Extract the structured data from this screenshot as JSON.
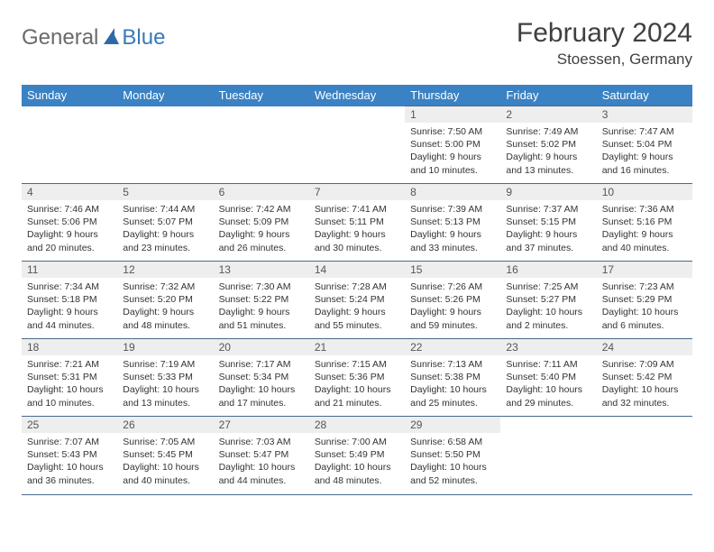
{
  "logo": {
    "general": "General",
    "blue": "Blue"
  },
  "title": "February 2024",
  "location": "Stoessen, Germany",
  "dayHeaders": [
    "Sunday",
    "Monday",
    "Tuesday",
    "Wednesday",
    "Thursday",
    "Friday",
    "Saturday"
  ],
  "colors": {
    "headerBg": "#3a82c4",
    "headerText": "#ffffff",
    "dayNumBg": "#eeeeee",
    "border": "#4a6a8a",
    "logoBlue": "#3a7ab8",
    "logoGray": "#6a6a6a"
  },
  "weeks": [
    [
      null,
      null,
      null,
      null,
      {
        "n": "1",
        "sr": "Sunrise: 7:50 AM",
        "ss": "Sunset: 5:00 PM",
        "d1": "Daylight: 9 hours",
        "d2": "and 10 minutes."
      },
      {
        "n": "2",
        "sr": "Sunrise: 7:49 AM",
        "ss": "Sunset: 5:02 PM",
        "d1": "Daylight: 9 hours",
        "d2": "and 13 minutes."
      },
      {
        "n": "3",
        "sr": "Sunrise: 7:47 AM",
        "ss": "Sunset: 5:04 PM",
        "d1": "Daylight: 9 hours",
        "d2": "and 16 minutes."
      }
    ],
    [
      {
        "n": "4",
        "sr": "Sunrise: 7:46 AM",
        "ss": "Sunset: 5:06 PM",
        "d1": "Daylight: 9 hours",
        "d2": "and 20 minutes."
      },
      {
        "n": "5",
        "sr": "Sunrise: 7:44 AM",
        "ss": "Sunset: 5:07 PM",
        "d1": "Daylight: 9 hours",
        "d2": "and 23 minutes."
      },
      {
        "n": "6",
        "sr": "Sunrise: 7:42 AM",
        "ss": "Sunset: 5:09 PM",
        "d1": "Daylight: 9 hours",
        "d2": "and 26 minutes."
      },
      {
        "n": "7",
        "sr": "Sunrise: 7:41 AM",
        "ss": "Sunset: 5:11 PM",
        "d1": "Daylight: 9 hours",
        "d2": "and 30 minutes."
      },
      {
        "n": "8",
        "sr": "Sunrise: 7:39 AM",
        "ss": "Sunset: 5:13 PM",
        "d1": "Daylight: 9 hours",
        "d2": "and 33 minutes."
      },
      {
        "n": "9",
        "sr": "Sunrise: 7:37 AM",
        "ss": "Sunset: 5:15 PM",
        "d1": "Daylight: 9 hours",
        "d2": "and 37 minutes."
      },
      {
        "n": "10",
        "sr": "Sunrise: 7:36 AM",
        "ss": "Sunset: 5:16 PM",
        "d1": "Daylight: 9 hours",
        "d2": "and 40 minutes."
      }
    ],
    [
      {
        "n": "11",
        "sr": "Sunrise: 7:34 AM",
        "ss": "Sunset: 5:18 PM",
        "d1": "Daylight: 9 hours",
        "d2": "and 44 minutes."
      },
      {
        "n": "12",
        "sr": "Sunrise: 7:32 AM",
        "ss": "Sunset: 5:20 PM",
        "d1": "Daylight: 9 hours",
        "d2": "and 48 minutes."
      },
      {
        "n": "13",
        "sr": "Sunrise: 7:30 AM",
        "ss": "Sunset: 5:22 PM",
        "d1": "Daylight: 9 hours",
        "d2": "and 51 minutes."
      },
      {
        "n": "14",
        "sr": "Sunrise: 7:28 AM",
        "ss": "Sunset: 5:24 PM",
        "d1": "Daylight: 9 hours",
        "d2": "and 55 minutes."
      },
      {
        "n": "15",
        "sr": "Sunrise: 7:26 AM",
        "ss": "Sunset: 5:26 PM",
        "d1": "Daylight: 9 hours",
        "d2": "and 59 minutes."
      },
      {
        "n": "16",
        "sr": "Sunrise: 7:25 AM",
        "ss": "Sunset: 5:27 PM",
        "d1": "Daylight: 10 hours",
        "d2": "and 2 minutes."
      },
      {
        "n": "17",
        "sr": "Sunrise: 7:23 AM",
        "ss": "Sunset: 5:29 PM",
        "d1": "Daylight: 10 hours",
        "d2": "and 6 minutes."
      }
    ],
    [
      {
        "n": "18",
        "sr": "Sunrise: 7:21 AM",
        "ss": "Sunset: 5:31 PM",
        "d1": "Daylight: 10 hours",
        "d2": "and 10 minutes."
      },
      {
        "n": "19",
        "sr": "Sunrise: 7:19 AM",
        "ss": "Sunset: 5:33 PM",
        "d1": "Daylight: 10 hours",
        "d2": "and 13 minutes."
      },
      {
        "n": "20",
        "sr": "Sunrise: 7:17 AM",
        "ss": "Sunset: 5:34 PM",
        "d1": "Daylight: 10 hours",
        "d2": "and 17 minutes."
      },
      {
        "n": "21",
        "sr": "Sunrise: 7:15 AM",
        "ss": "Sunset: 5:36 PM",
        "d1": "Daylight: 10 hours",
        "d2": "and 21 minutes."
      },
      {
        "n": "22",
        "sr": "Sunrise: 7:13 AM",
        "ss": "Sunset: 5:38 PM",
        "d1": "Daylight: 10 hours",
        "d2": "and 25 minutes."
      },
      {
        "n": "23",
        "sr": "Sunrise: 7:11 AM",
        "ss": "Sunset: 5:40 PM",
        "d1": "Daylight: 10 hours",
        "d2": "and 29 minutes."
      },
      {
        "n": "24",
        "sr": "Sunrise: 7:09 AM",
        "ss": "Sunset: 5:42 PM",
        "d1": "Daylight: 10 hours",
        "d2": "and 32 minutes."
      }
    ],
    [
      {
        "n": "25",
        "sr": "Sunrise: 7:07 AM",
        "ss": "Sunset: 5:43 PM",
        "d1": "Daylight: 10 hours",
        "d2": "and 36 minutes."
      },
      {
        "n": "26",
        "sr": "Sunrise: 7:05 AM",
        "ss": "Sunset: 5:45 PM",
        "d1": "Daylight: 10 hours",
        "d2": "and 40 minutes."
      },
      {
        "n": "27",
        "sr": "Sunrise: 7:03 AM",
        "ss": "Sunset: 5:47 PM",
        "d1": "Daylight: 10 hours",
        "d2": "and 44 minutes."
      },
      {
        "n": "28",
        "sr": "Sunrise: 7:00 AM",
        "ss": "Sunset: 5:49 PM",
        "d1": "Daylight: 10 hours",
        "d2": "and 48 minutes."
      },
      {
        "n": "29",
        "sr": "Sunrise: 6:58 AM",
        "ss": "Sunset: 5:50 PM",
        "d1": "Daylight: 10 hours",
        "d2": "and 52 minutes."
      },
      null,
      null
    ]
  ]
}
